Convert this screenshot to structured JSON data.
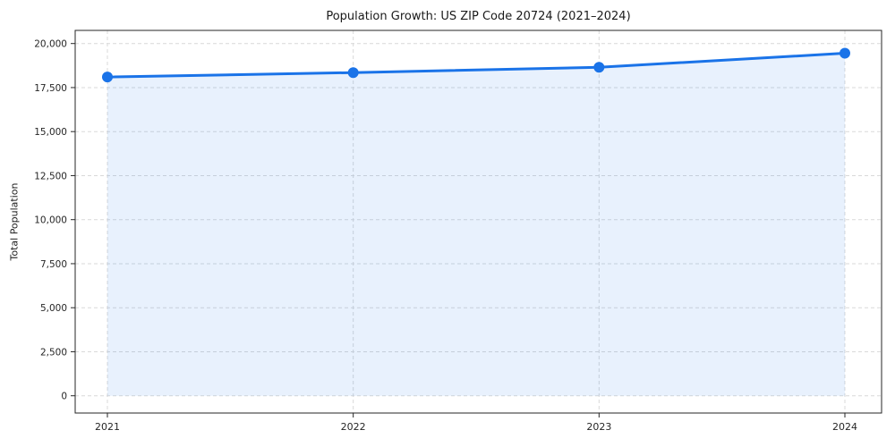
{
  "chart_data": {
    "type": "line",
    "title": "Population Growth: US ZIP Code 20724 (2021–2024)",
    "xlabel": "",
    "ylabel": "Total Population",
    "categories": [
      "2021",
      "2022",
      "2023",
      "2024"
    ],
    "x": [
      2021,
      2022,
      2023,
      2024
    ],
    "series": [
      {
        "name": "Total Population",
        "values": [
          18100,
          18350,
          18650,
          19450
        ]
      }
    ],
    "ylim": [
      0,
      20000
    ],
    "yticks": [
      0,
      2500,
      5000,
      7500,
      10000,
      12500,
      15000,
      17500,
      20000
    ],
    "ytick_labels": [
      "0",
      "2,500",
      "5,000",
      "7,500",
      "10,000",
      "12,500",
      "15,000",
      "17,500",
      "20,000"
    ],
    "grid": true,
    "grid_style": "dashed",
    "legend_position": "none",
    "marker": "circle",
    "area_fill": true,
    "colors": {
      "line": "#1a73e8",
      "fill": "#1a73e8",
      "fill_opacity": 0.1,
      "grid": "#d9d9d9",
      "axis": "#262626",
      "text": "#262626",
      "background": "#ffffff"
    }
  }
}
